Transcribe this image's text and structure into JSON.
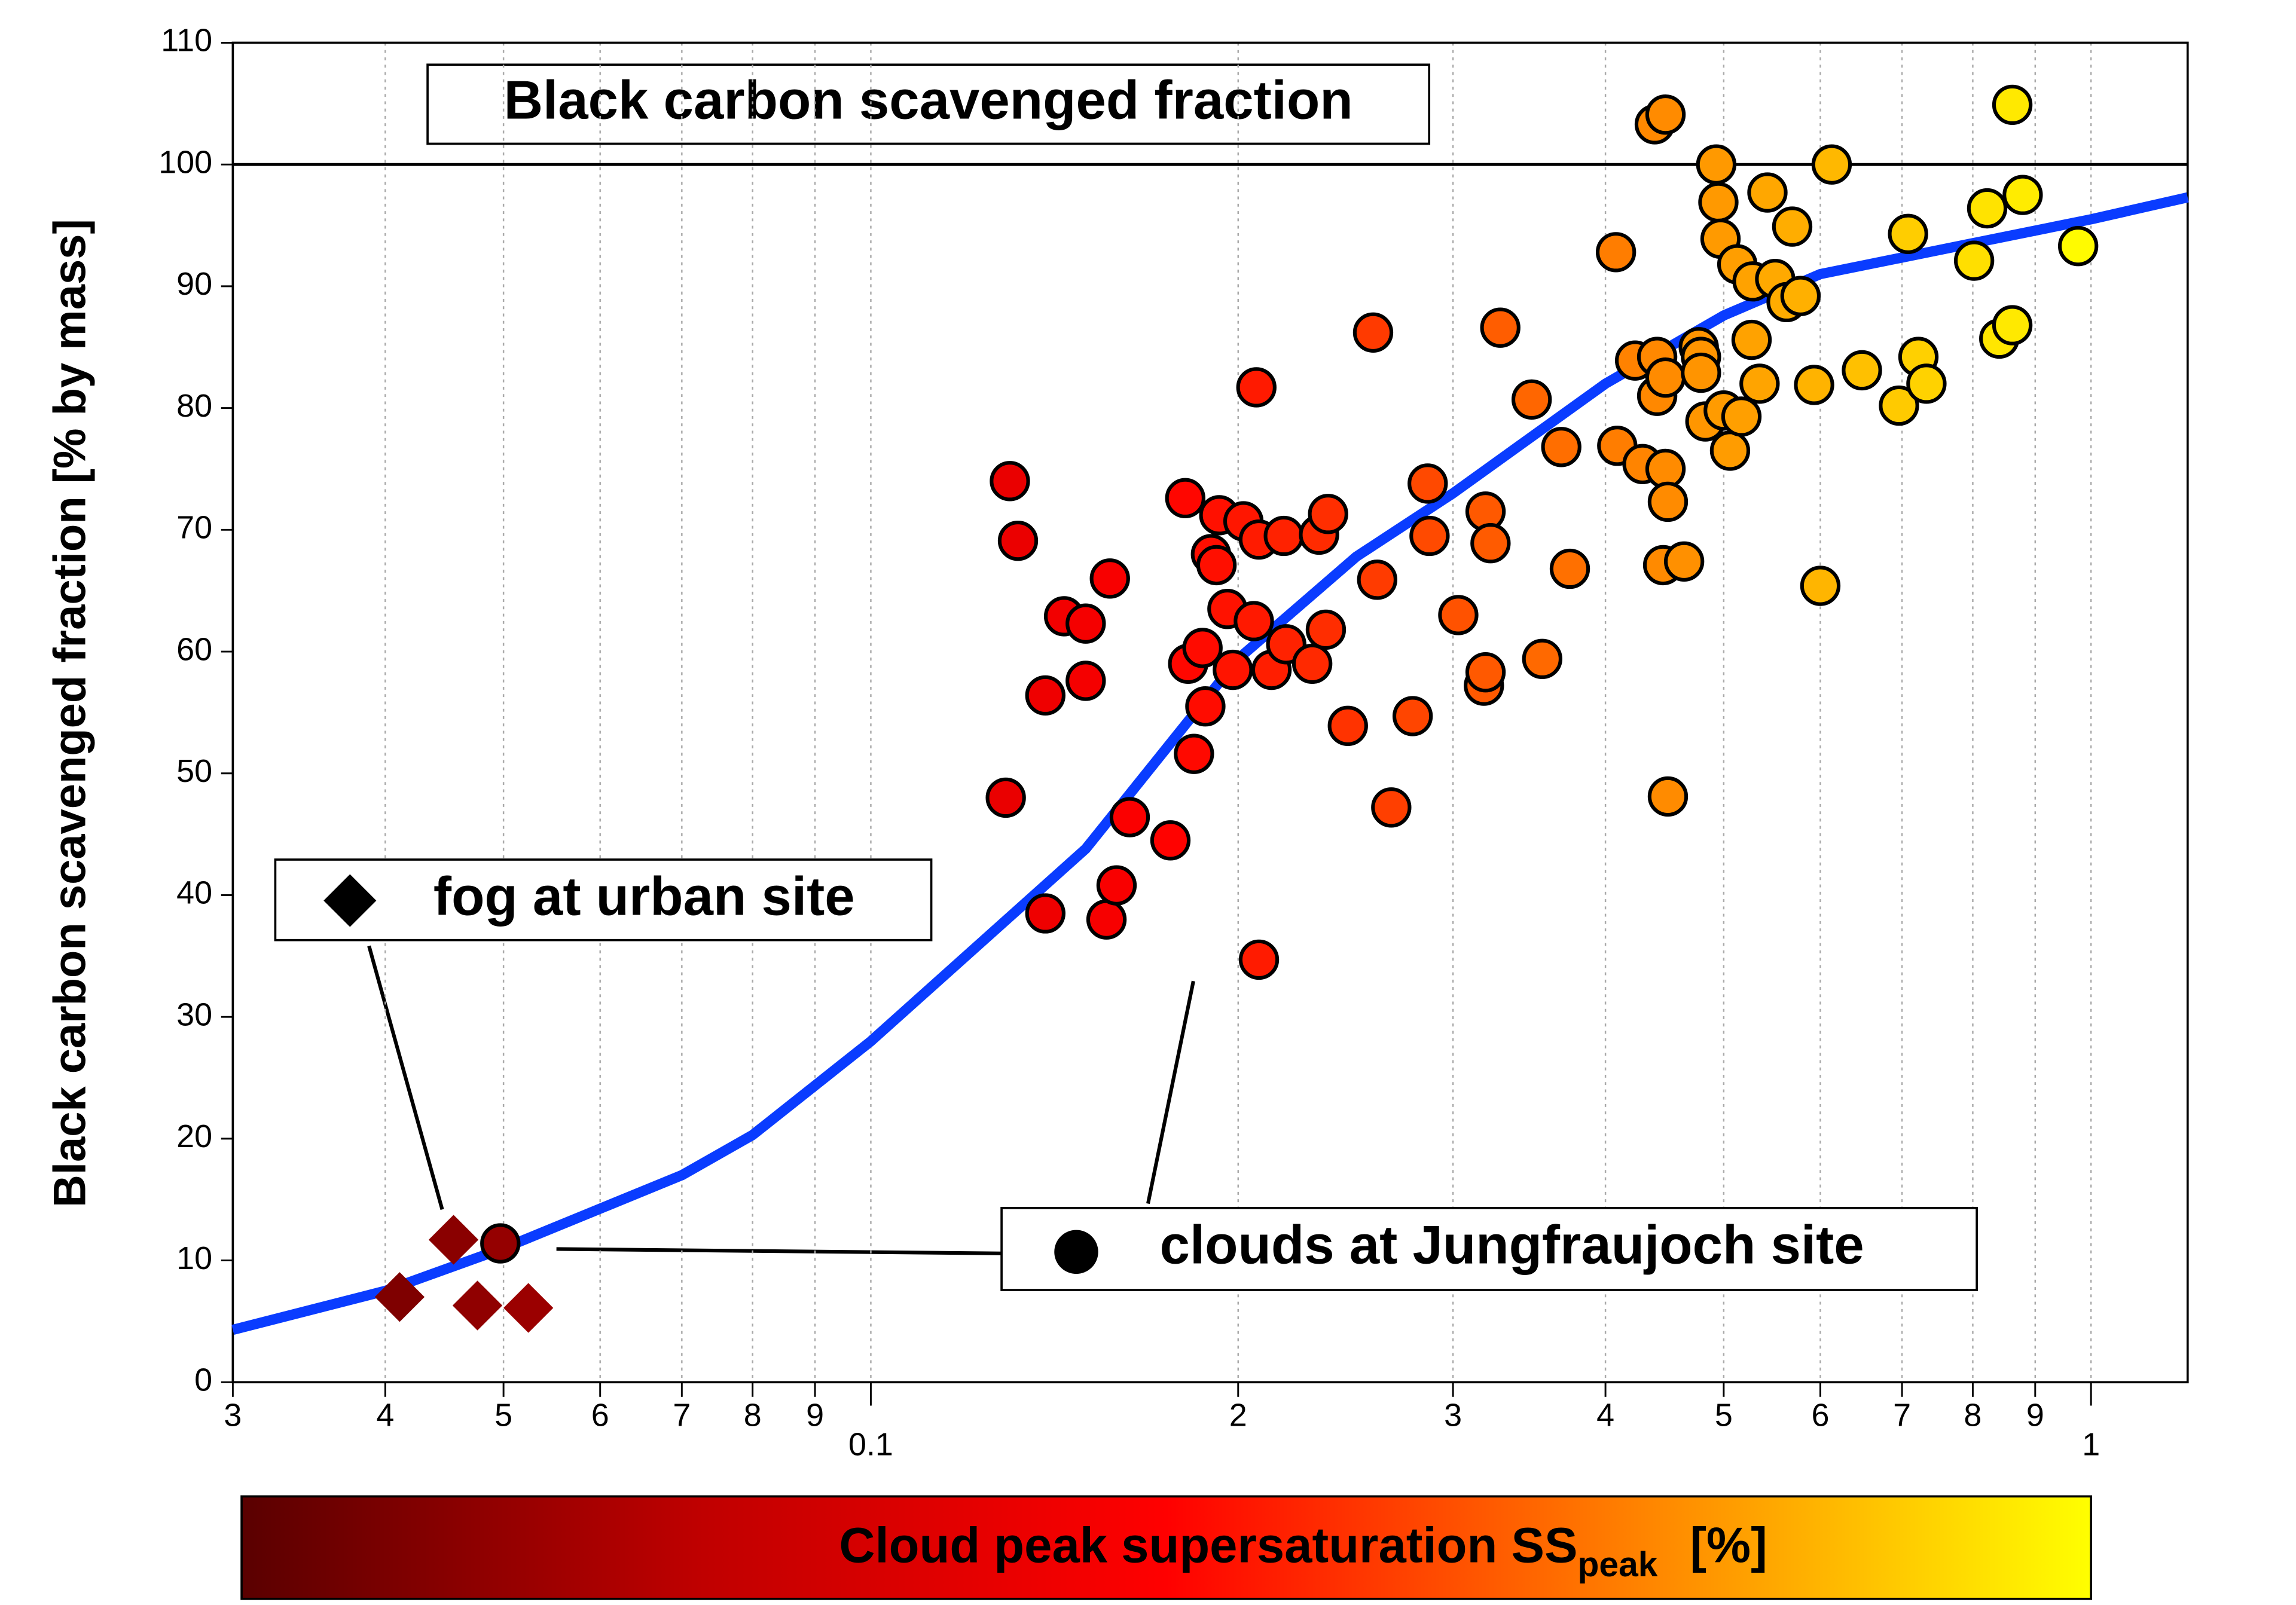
{
  "chart_data": {
    "type": "scatter",
    "ylabel": "Black carbon scavenged fraction [% by mass]",
    "title": "Black carbon scavenged fraction",
    "xscale": "log",
    "xlim": [
      0.03,
      1.2
    ],
    "ylim": [
      0,
      110
    ],
    "xticks": [
      {
        "value": 0.03,
        "label": "3"
      },
      {
        "value": 0.04,
        "label": "4"
      },
      {
        "value": 0.05,
        "label": "5"
      },
      {
        "value": 0.06,
        "label": "6"
      },
      {
        "value": 0.07,
        "label": "7"
      },
      {
        "value": 0.08,
        "label": "8"
      },
      {
        "value": 0.09,
        "label": "9"
      },
      0.1,
      {
        "value": 0.2,
        "label": "2"
      },
      {
        "value": 0.3,
        "label": "3"
      },
      {
        "value": 0.4,
        "label": "4"
      },
      {
        "value": 0.5,
        "label": "5"
      },
      {
        "value": 0.6,
        "label": "6"
      },
      {
        "value": 0.7,
        "label": "7"
      },
      {
        "value": 0.8,
        "label": "8"
      },
      {
        "value": 0.9,
        "label": "9"
      },
      1
    ],
    "yticks": [
      0,
      10,
      20,
      30,
      40,
      50,
      60,
      70,
      80,
      90,
      100,
      110
    ],
    "grid": true,
    "hline": 100,
    "colormap": [
      "#5a0000",
      "#c00000",
      "#ff0000",
      "#ff8000",
      "#ffff00"
    ],
    "colorlim": [
      0.03,
      1
    ],
    "colorbar_label": "Cloud peak supersaturation SS",
    "colorbar_label_sub": "peak",
    "colorbar_label_unit": "[%]",
    "series": [
      {
        "name": "clouds at Jungfraujoch site",
        "marker": "circle",
        "color": "#000000",
        "x": [
          0.129,
          0.13,
          0.132,
          0.139,
          0.139,
          0.144,
          0.15,
          0.15,
          0.156,
          0.157,
          0.159,
          0.163,
          0.176,
          0.181,
          0.182,
          0.184,
          0.187,
          0.188,
          0.19,
          0.192,
          0.193,
          0.196,
          0.198,
          0.202,
          0.206,
          0.207,
          0.208,
          0.208,
          0.213,
          0.218,
          0.219,
          0.23,
          0.233,
          0.237,
          0.236,
          0.246,
          0.258,
          0.26,
          0.267,
          0.278,
          0.286,
          0.287,
          0.303,
          0.318,
          0.319,
          0.319,
          0.322,
          0.328,
          0.348,
          0.355,
          0.368,
          0.374,
          0.408,
          0.409,
          0.423,
          0.429,
          0.439,
          0.441,
          0.441,
          0.448,
          0.446,
          0.448,
          0.448,
          0.45,
          0.45,
          0.464,
          0.477,
          0.479,
          0.479,
          0.483,
          0.493,
          0.495,
          0.497,
          0.5,
          0.506,
          0.513,
          0.517,
          0.527,
          0.528,
          0.535,
          0.543,
          0.551,
          0.563,
          0.569,
          0.578,
          0.593,
          0.6,
          0.613,
          0.649,
          0.696,
          0.708,
          0.722,
          0.733,
          0.802,
          0.822,
          0.841,
          0.862,
          0.862,
          0.879,
          0.976,
          0.0497
        ],
        "values": [
          48.0,
          74,
          69.1,
          56.4,
          38.5,
          62.9,
          62.3,
          57.6,
          38.0,
          66.0,
          40.8,
          46.4,
          44.5,
          72.6,
          59.0,
          51.6,
          60.3,
          55.5,
          68.0,
          67.1,
          71.2,
          63.5,
          58.5,
          70.7,
          62.5,
          81.7,
          34.7,
          69.2,
          58.5,
          69.5,
          60.6,
          59.0,
          69.6,
          71.3,
          61.8,
          53.9,
          86.2,
          65.9,
          47.2,
          54.7,
          73.8,
          69.5,
          63.0,
          57.2,
          58.3,
          71.5,
          68.9,
          86.6,
          80.7,
          59.4,
          76.8,
          66.8,
          92.8,
          76.9,
          83.9,
          75.4,
          103.3,
          81.0,
          84.2,
          104.1,
          67.1,
          75.0,
          82.5,
          72.3,
          48.1,
          67.4,
          85.0,
          84.2,
          82.9,
          78.9,
          100.0,
          96.9,
          93.9,
          79.8,
          76.5,
          91.8,
          79.3,
          85.6,
          90.4,
          82.0,
          97.7,
          90.6,
          88.7,
          94.9,
          89.2,
          81.9,
          65.4,
          100.0,
          83.1,
          80.2,
          94.3,
          84.2,
          82.0,
          92.1,
          96.4,
          85.7,
          104.9,
          86.8,
          97.5,
          93.3,
          11.4
        ]
      },
      {
        "name": "fog at urban site",
        "marker": "diamond",
        "color": "#000000",
        "x": [
          0.0411,
          0.0455,
          0.0476,
          0.0524
        ],
        "values": [
          7.0,
          11.7,
          6.3,
          6.1
        ]
      },
      {
        "marker": "line",
        "color": "#0a3cff",
        "x": [
          0.03,
          0.04,
          0.05,
          0.07,
          0.08,
          0.1,
          0.15,
          0.2,
          0.25,
          0.3,
          0.4,
          0.5,
          0.6,
          1,
          1.2
        ],
        "values": [
          4.3,
          7.5,
          11,
          17,
          20.3,
          28,
          43.8,
          59.4,
          67.8,
          73,
          82,
          87.6,
          91,
          95.5,
          97.3
        ]
      }
    ]
  }
}
